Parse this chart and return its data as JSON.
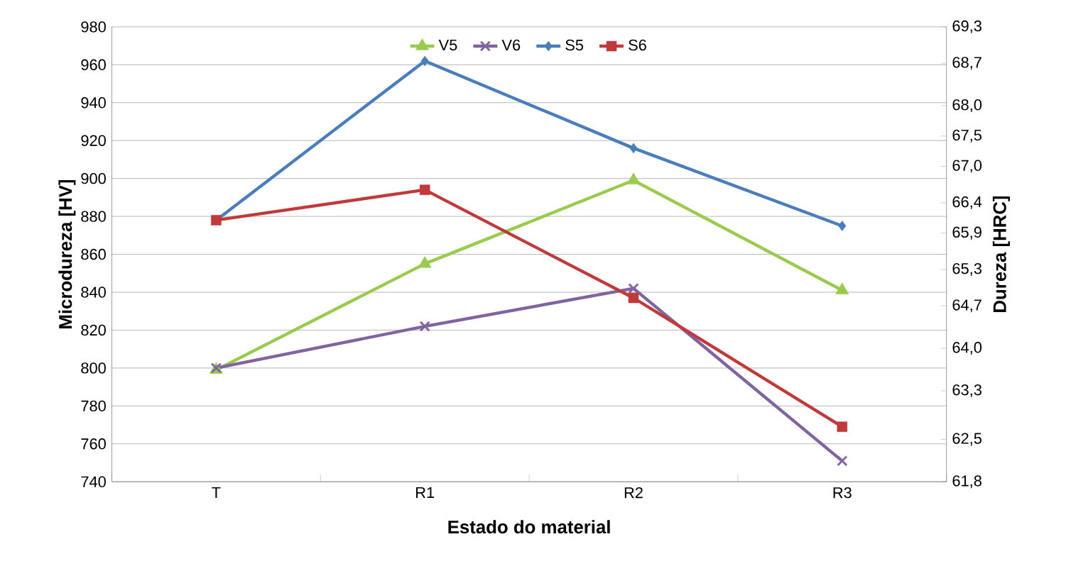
{
  "chart_data": {
    "type": "line",
    "xlabel": "Estado do material",
    "ylabel": "Microdureza [HV]",
    "y2label": "Dureza [HRC]",
    "categories": [
      "T",
      "R1",
      "R2",
      "R3"
    ],
    "series": [
      {
        "name": "V5",
        "color": "#9acb4f",
        "marker": "triangle",
        "values": [
          799,
          855,
          899,
          841
        ]
      },
      {
        "name": "V6",
        "color": "#8064a2",
        "marker": "cross",
        "values": [
          800,
          822,
          842,
          751
        ]
      },
      {
        "name": "S5",
        "color": "#4a7ebb",
        "marker": "diamond",
        "values": [
          878,
          962,
          916,
          875
        ]
      },
      {
        "name": "S6",
        "color": "#c0393b",
        "marker": "square",
        "values": [
          878,
          894,
          837,
          769
        ]
      }
    ],
    "ylim": [
      740,
      980
    ],
    "yticks": [
      740,
      760,
      780,
      800,
      820,
      840,
      860,
      880,
      900,
      920,
      940,
      960,
      980
    ],
    "y2lim": [
      61.8,
      69.3
    ],
    "y2ticks": [
      {
        "value": 61.8,
        "label": "61,8"
      },
      {
        "value": 62.5,
        "label": "62,5"
      },
      {
        "value": 63.3,
        "label": "63,3"
      },
      {
        "value": 64.0,
        "label": "64,0"
      },
      {
        "value": 64.7,
        "label": "64,7"
      },
      {
        "value": 65.3,
        "label": "65,3"
      },
      {
        "value": 65.9,
        "label": "65,9"
      },
      {
        "value": 66.4,
        "label": "66,4"
      },
      {
        "value": 67.0,
        "label": "67,0"
      },
      {
        "value": 67.5,
        "label": "67,5"
      },
      {
        "value": 68.0,
        "label": "68,0"
      },
      {
        "value": 68.7,
        "label": "68,7"
      },
      {
        "value": 69.3,
        "label": "69,3"
      }
    ],
    "grid": "y",
    "legend": "top",
    "line_style": "solid"
  }
}
